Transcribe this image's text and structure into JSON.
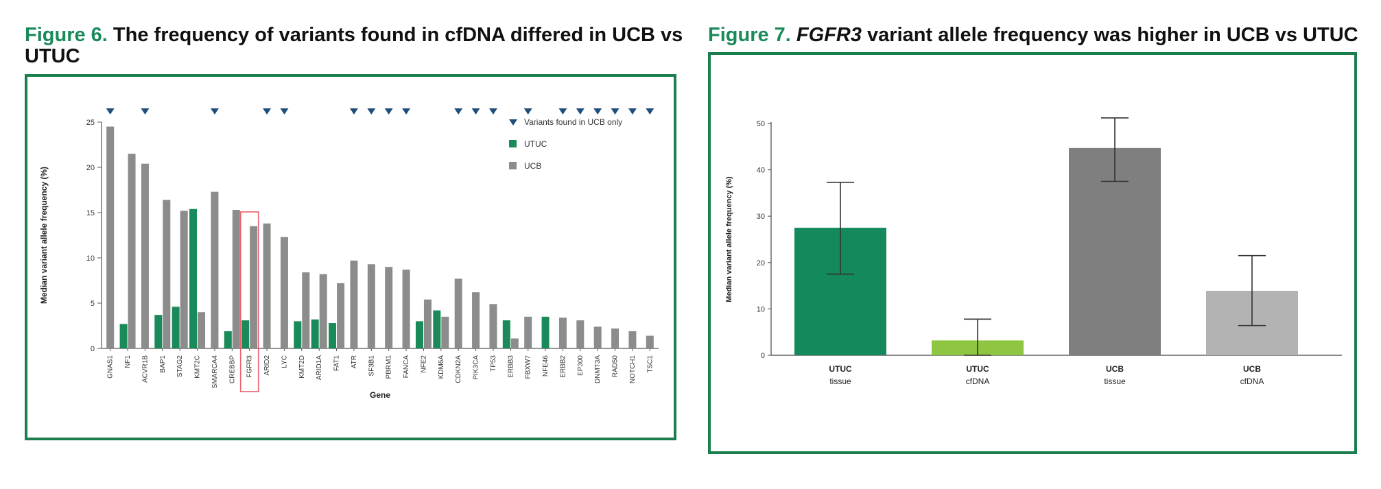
{
  "figures": {
    "fig6": {
      "label": "Figure 6.",
      "title": "The frequency of variants found in cfDNA differed in UCB vs UTUC"
    },
    "fig7": {
      "label": "Figure 7.",
      "gene": "FGFR3",
      "title": "variant allele frequency was higher in UCB vs UTUC"
    }
  },
  "colors": {
    "frame": "#1b7f4d",
    "utuc": "#1b8a5a",
    "ucb": "#8c8c8c",
    "marker": "#1f4e79",
    "highlight": "#e8606a",
    "utuc_tissue": "#13895c",
    "utuc_cfdna": "#8ec641",
    "ucb_tissue": "#7f7f7f",
    "ucb_cfdna": "#b3b3b3"
  },
  "chart_data": [
    {
      "type": "bar",
      "xlabel": "Gene",
      "ylabel": "Median variant allele frequency (%)",
      "ylim": [
        0,
        25
      ],
      "yticks": [
        0,
        5,
        10,
        15,
        20,
        25
      ],
      "legend": {
        "placement": "top-right",
        "entries": [
          "Variants found in UCB only",
          "UTUC",
          "UCB"
        ]
      },
      "highlighted_category": "FGFR3",
      "categories": [
        "GNAS1",
        "NF1",
        "ACVR1B",
        "BAP1",
        "STAG2",
        "KMT2C",
        "SMARCA4",
        "CREBBP",
        "FGFR3",
        "ARID2",
        "LYC",
        "KMT2D",
        "ARID1A",
        "FAT1",
        "ATR",
        "SF3B1",
        "PBRM1",
        "FANCA",
        "NFE2",
        "KDM6A",
        "CDKN2A",
        "PIK3CA",
        "TP53",
        "ERBB3",
        "FBXW7",
        "NFE46",
        "ERBB2",
        "EP300",
        "DNMT3A",
        "RAD50",
        "NOTCH1",
        "TSC1"
      ],
      "series": [
        {
          "name": "UTUC",
          "values": [
            null,
            2.7,
            null,
            3.7,
            4.6,
            15.4,
            null,
            1.9,
            3.1,
            null,
            null,
            3.0,
            3.2,
            2.8,
            null,
            null,
            null,
            null,
            3.0,
            4.2,
            null,
            null,
            null,
            3.1,
            null,
            3.5,
            null,
            null,
            null,
            null,
            null,
            null
          ]
        },
        {
          "name": "UCB",
          "values": [
            24.5,
            21.5,
            20.4,
            16.4,
            15.2,
            4.0,
            17.3,
            15.3,
            13.5,
            13.8,
            12.3,
            8.4,
            8.2,
            7.2,
            9.7,
            9.3,
            9.0,
            8.7,
            5.4,
            3.5,
            7.7,
            6.2,
            4.9,
            1.1,
            3.5,
            null,
            3.4,
            3.1,
            2.4,
            2.2,
            1.9,
            1.4
          ]
        }
      ],
      "ucb_only_markers": [
        "GNAS1",
        "ACVR1B",
        "SMARCA4",
        "ARID2",
        "LYC",
        "ATR",
        "SF3B1",
        "PBRM1",
        "FANCA",
        "CDKN2A",
        "PIK3CA",
        "TP53",
        "FBXW7",
        "ERBB2",
        "EP300",
        "DNMT3A",
        "RAD50",
        "NOTCH1",
        "TSC1"
      ]
    },
    {
      "type": "bar",
      "xlabel": "",
      "ylabel": "Median variant allele frequency (%)",
      "ylim": [
        0,
        50
      ],
      "yticks": [
        0,
        10,
        20,
        30,
        40,
        50
      ],
      "categories": [
        [
          "UTUC",
          "tissue"
        ],
        [
          "UTUC",
          "cfDNA"
        ],
        [
          "UCB",
          "tissue"
        ],
        [
          "UCB",
          "cfDNA"
        ]
      ],
      "values": [
        27.5,
        3.2,
        44.7,
        13.9
      ],
      "error_low": [
        17.5,
        0,
        37.5,
        6.4
      ],
      "error_high": [
        37.3,
        7.8,
        51.2,
        21.5
      ]
    }
  ]
}
